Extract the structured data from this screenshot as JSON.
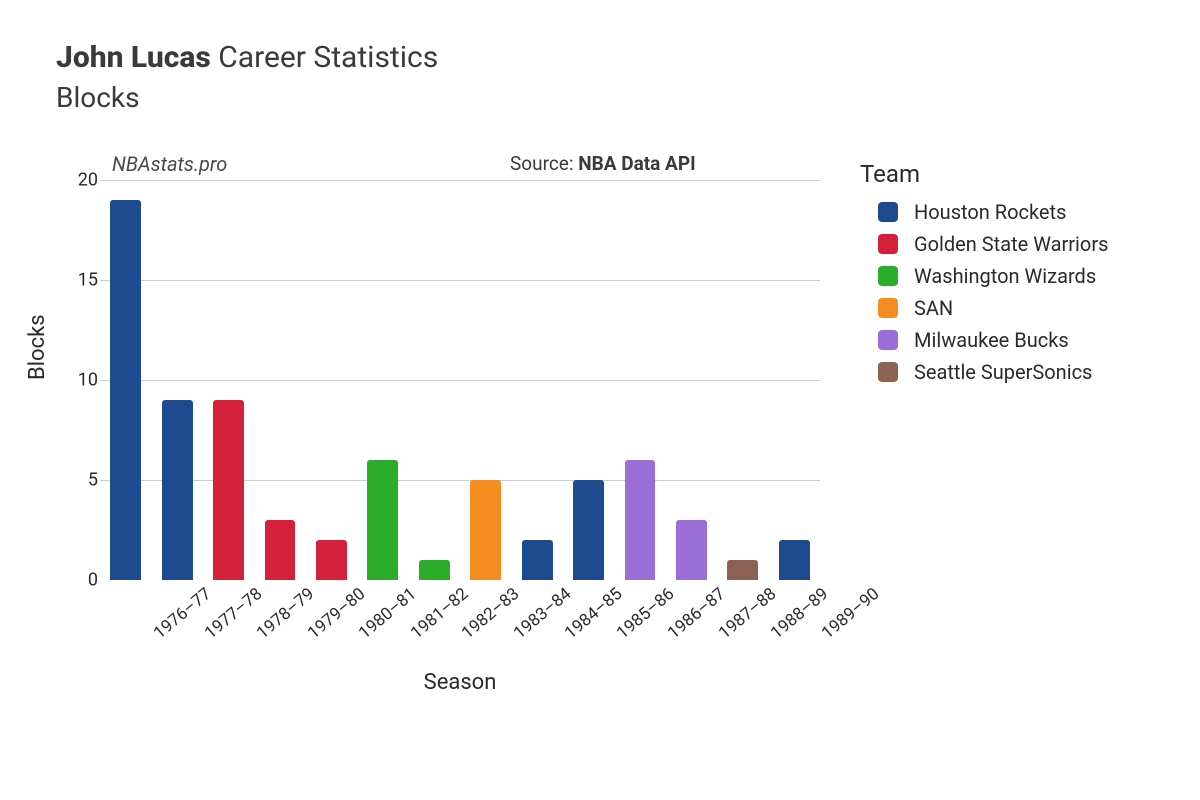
{
  "title": {
    "player": "John Lucas",
    "suffix": "Career Statistics",
    "statistic": "Blocks"
  },
  "watermark": "NBAstats.pro",
  "source_prefix": "Source: ",
  "source_name": "NBA Data API",
  "chart": {
    "type": "bar",
    "background_color": "#ffffff",
    "grid_color": "#cccccc",
    "ylabel": "Blocks",
    "xlabel": "Season",
    "ylim": [
      0,
      20
    ],
    "yticks": [
      0,
      5,
      10,
      15,
      20
    ],
    "bar_width_ratio": 0.6,
    "bar_border_radius": 3,
    "xtick_rotation_deg": -40,
    "axis_font_size": 18,
    "label_font_size": 22,
    "teams": {
      "Houston Rockets": "#1e4b8f",
      "Golden State Warriors": "#d4203a",
      "Washington Wizards": "#2bac2b",
      "SAN": "#f58c1f",
      "Milwaukee Bucks": "#9a6dd7",
      "Seattle SuperSonics": "#8a6152"
    },
    "seasons": [
      {
        "label": "1976–77",
        "value": 19,
        "team": "Houston Rockets"
      },
      {
        "label": "1977–78",
        "value": 9,
        "team": "Houston Rockets"
      },
      {
        "label": "1978–79",
        "value": 9,
        "team": "Golden State Warriors"
      },
      {
        "label": "1979–80",
        "value": 3,
        "team": "Golden State Warriors"
      },
      {
        "label": "1980–81",
        "value": 2,
        "team": "Golden State Warriors"
      },
      {
        "label": "1981–82",
        "value": 6,
        "team": "Washington Wizards"
      },
      {
        "label": "1982–83",
        "value": 1,
        "team": "Washington Wizards"
      },
      {
        "label": "1983–84",
        "value": 5,
        "team": "SAN"
      },
      {
        "label": "1984–85",
        "value": 2,
        "team": "Houston Rockets"
      },
      {
        "label": "1985–86",
        "value": 5,
        "team": "Houston Rockets"
      },
      {
        "label": "1986–87",
        "value": 6,
        "team": "Milwaukee Bucks"
      },
      {
        "label": "1987–88",
        "value": 3,
        "team": "Milwaukee Bucks"
      },
      {
        "label": "1988–89",
        "value": 1,
        "team": "Seattle SuperSonics"
      },
      {
        "label": "1989–90",
        "value": 2,
        "team": "Houston Rockets"
      }
    ]
  },
  "legend": {
    "title": "Team",
    "order": [
      "Houston Rockets",
      "Golden State Warriors",
      "Washington Wizards",
      "SAN",
      "Milwaukee Bucks",
      "Seattle SuperSonics"
    ]
  }
}
